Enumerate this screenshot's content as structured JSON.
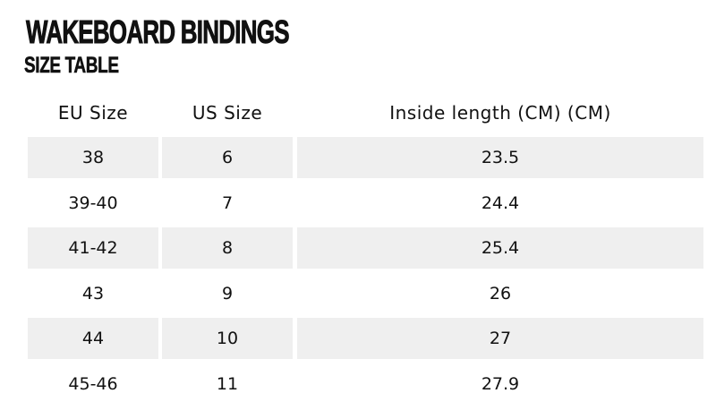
{
  "header": {
    "title": "WAKEBOARD BINDINGS",
    "subtitle": "SIZE TABLE"
  },
  "table": {
    "columns": [
      "EU Size",
      "US Size",
      "Inside length (CM) (CM)"
    ],
    "rows": [
      [
        "38",
        "6",
        "23.5"
      ],
      [
        "39-40",
        "7",
        "24.4"
      ],
      [
        "41-42",
        "8",
        "25.4"
      ],
      [
        "43",
        "9",
        "26"
      ],
      [
        "44",
        "10",
        "27"
      ],
      [
        "45-46",
        "11",
        "27.9"
      ]
    ]
  }
}
